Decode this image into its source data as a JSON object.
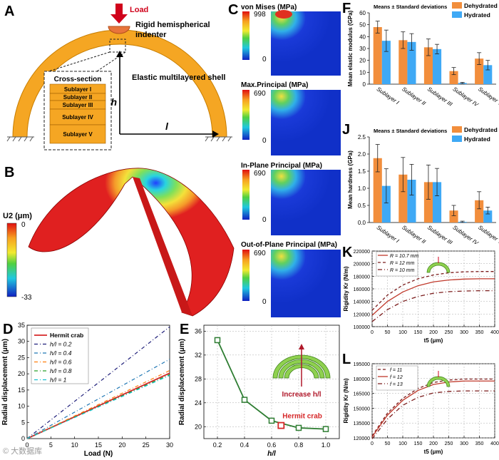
{
  "panels": {
    "A": {
      "letter": "A",
      "load_label": "Load",
      "indenter_label_1": "Rigid hemispherical",
      "indenter_label_2": "indenter",
      "shell_label": "Elastic multilayered shell",
      "cross_section_title": "Cross-section",
      "sublayers": [
        "Sublayer I",
        "Sublayer II",
        "Sublayer III",
        "Sublayer IV",
        "Sublayer V"
      ],
      "h_label": "h",
      "l_label": "l",
      "colors": {
        "shell": "#f5a623",
        "load": "#d0021b",
        "indenter": "#e8743b"
      }
    },
    "B": {
      "letter": "B",
      "legend_title": "U2 (μm)",
      "legend_max": "0",
      "legend_min": "-33"
    },
    "C": {
      "letter": "C",
      "maps": [
        {
          "title": "von Mises (MPa)",
          "max": "998",
          "min": "0"
        },
        {
          "title": "Max.Principal (MPa)",
          "max": "690",
          "min": "0"
        },
        {
          "title": "In-Plane Principal (MPa)",
          "max": "690",
          "min": "0"
        },
        {
          "title": "Out-of-Plane Principal (MPa)",
          "max": "690",
          "min": "0"
        }
      ]
    },
    "D": {
      "letter": "D"
    },
    "E": {
      "letter": "E",
      "annotation": "Increase h/l",
      "hermit_label": "Hermit crab"
    },
    "F": {
      "letter": "F"
    },
    "J": {
      "letter": "J"
    },
    "K": {
      "letter": "K"
    },
    "L": {
      "letter": "L"
    }
  },
  "watermark": "© 大数据库",
  "chart_data": [
    {
      "id": "D",
      "type": "line",
      "xlabel": "Load (N)",
      "ylabel": "Radial displacement (μm)",
      "xlim": [
        0,
        30
      ],
      "ylim": [
        0,
        35
      ],
      "xticks": [
        "0",
        "5",
        "10",
        "15",
        "20",
        "25",
        "30"
      ],
      "yticks": [
        "0",
        "5",
        "10",
        "15",
        "20",
        "25",
        "30",
        "35"
      ],
      "series": [
        {
          "name": "Hermit crab",
          "color": "#d62728",
          "dash": "",
          "x": [
            0,
            30
          ],
          "y": [
            0,
            20.2
          ]
        },
        {
          "name": "h/l = 0.2",
          "color": "#1f1f7a",
          "dash": "5,3,1,3",
          "x": [
            0,
            30
          ],
          "y": [
            0,
            34.5
          ]
        },
        {
          "name": "h/l = 0.4",
          "color": "#1f77b4",
          "dash": "5,3,1,3",
          "x": [
            0,
            30
          ],
          "y": [
            0,
            24.5
          ]
        },
        {
          "name": "h/l = 0.6",
          "color": "#ff7f0e",
          "dash": "5,3,1,3",
          "x": [
            0,
            30
          ],
          "y": [
            0,
            21
          ]
        },
        {
          "name": "h/l = 0.8",
          "color": "#2ca02c",
          "dash": "5,3,1,3",
          "x": [
            0,
            30
          ],
          "y": [
            0,
            19.8
          ]
        },
        {
          "name": "h/l = 1",
          "color": "#17becf",
          "dash": "5,3,1,3",
          "x": [
            0,
            30
          ],
          "y": [
            0,
            19.5
          ]
        }
      ]
    },
    {
      "id": "E",
      "type": "line",
      "xlabel": "h/l",
      "ylabel": "Radial displacement (μm)",
      "xlim": [
        0.1,
        1.1
      ],
      "ylim": [
        18,
        37
      ],
      "xticks": [
        "0.2",
        "0.4",
        "0.6",
        "0.8",
        "1.0"
      ],
      "yticks": [
        "20",
        "24",
        "28",
        "32",
        "36"
      ],
      "series": [
        {
          "name": "h/l sweep",
          "color": "#2e7d32",
          "x": [
            0.2,
            0.4,
            0.6,
            0.8,
            1.0
          ],
          "y": [
            34.5,
            24.5,
            21,
            19.8,
            19.6
          ]
        },
        {
          "name": "Hermit crab",
          "color": "#d62728",
          "x": [
            0.67
          ],
          "y": [
            20.2
          ]
        }
      ]
    },
    {
      "id": "F",
      "type": "bar",
      "title": "Means ± Standard deviations",
      "ylabel": "Mean elastic modulus (GPa)",
      "ylim": [
        0,
        60
      ],
      "yticks": [
        "0",
        "10",
        "20",
        "30",
        "40",
        "50",
        "60"
      ],
      "categories": [
        "Sublayer I",
        "Sublayer II",
        "Sublayer III",
        "Sublayer IV",
        "Sublayer V"
      ],
      "series": [
        {
          "name": "Dehydrated",
          "color": "#f28e3c",
          "values": [
            48,
            37,
            31,
            11,
            21.5
          ],
          "errors": [
            5,
            7,
            7,
            3,
            5
          ]
        },
        {
          "name": "Hydrated",
          "color": "#3fa9f5",
          "values": [
            36.5,
            35.5,
            29.5,
            1,
            16
          ],
          "errors": [
            9,
            7,
            4,
            0.5,
            4
          ]
        }
      ]
    },
    {
      "id": "J",
      "type": "bar",
      "title": "Means ± Standard deviations",
      "ylabel": "Mean hardness (GPa)",
      "ylim": [
        0,
        2.5
      ],
      "yticks": [
        "0.0",
        "0.5",
        "1.0",
        "1.5",
        "2.0",
        "2.5"
      ],
      "categories": [
        "Sublayer I",
        "Sublayer II",
        "Sublayer III",
        "Sublayer IV",
        "Sublayer V"
      ],
      "series": [
        {
          "name": "Dehydrated",
          "color": "#f28e3c",
          "values": [
            1.88,
            1.4,
            1.18,
            0.35,
            0.65
          ],
          "errors": [
            0.4,
            0.5,
            0.5,
            0.15,
            0.25
          ]
        },
        {
          "name": "Hydrated",
          "color": "#3fa9f5",
          "values": [
            1.07,
            1.25,
            1.18,
            0.02,
            0.35
          ],
          "errors": [
            0.5,
            0.45,
            0.4,
            0.02,
            0.1
          ]
        }
      ]
    },
    {
      "id": "K",
      "type": "line",
      "xlabel": "t5 (μm)",
      "ylabel": "Rigidity Kr (N/m)",
      "xlim": [
        0,
        400
      ],
      "ylim": [
        100000,
        220000
      ],
      "xticks": [
        "0",
        "50",
        "100",
        "150",
        "200",
        "250",
        "300",
        "350",
        "400"
      ],
      "yticks": [
        "100000",
        "120000",
        "140000",
        "160000",
        "180000",
        "200000",
        "220000"
      ],
      "series": [
        {
          "name": "R = 10.7 mm",
          "color": "#c0392b",
          "dash": "",
          "x": [
            0,
            50,
            100,
            150,
            200,
            250,
            300,
            350,
            400
          ],
          "y": [
            118000,
            140000,
            155000,
            165000,
            171000,
            174000,
            175500,
            176000,
            176000
          ]
        },
        {
          "name": "R = 12 mm",
          "color": "#7b1c1c",
          "dash": "4,3",
          "x": [
            0,
            50,
            100,
            150,
            200,
            250,
            300,
            350,
            400
          ],
          "y": [
            126000,
            150000,
            166000,
            176000,
            182000,
            185500,
            187000,
            187500,
            187500
          ]
        },
        {
          "name": "R = 10 mm",
          "color": "#7b1c1c",
          "dash": "6,3,1,3",
          "x": [
            0,
            50,
            100,
            150,
            200,
            250,
            300,
            350,
            400
          ],
          "y": [
            108000,
            127000,
            140000,
            148000,
            153000,
            155500,
            156500,
            157000,
            157000
          ]
        }
      ]
    },
    {
      "id": "L",
      "type": "line",
      "xlabel": "t5 (μm)",
      "ylabel": "Rigidity Kr (N/m)",
      "xlim": [
        0,
        400
      ],
      "ylim": [
        120000,
        195000
      ],
      "xticks": [
        "0",
        "50",
        "100",
        "150",
        "200",
        "250",
        "300",
        "350",
        "400"
      ],
      "yticks": [
        "120000",
        "135000",
        "150000",
        "165000",
        "180000",
        "195000"
      ],
      "series": [
        {
          "name": "f = 11",
          "color": "#7b1c1c",
          "dash": "4,3",
          "x": [
            0,
            50,
            100,
            150,
            200,
            250,
            300,
            350,
            400
          ],
          "y": [
            122000,
            145000,
            160000,
            170000,
            176000,
            178500,
            179500,
            179500,
            179500
          ]
        },
        {
          "name": "f = 12",
          "color": "#c0392b",
          "dash": "",
          "x": [
            0,
            50,
            100,
            150,
            200,
            250,
            300,
            350,
            400
          ],
          "y": [
            121000,
            143000,
            158000,
            168000,
            174000,
            176500,
            177500,
            177500,
            177500
          ]
        },
        {
          "name": "f = 13",
          "color": "#7b1c1c",
          "dash": "6,3,1,3",
          "x": [
            0,
            50,
            100,
            150,
            200,
            250,
            300,
            350,
            400
          ],
          "y": [
            119000,
            139000,
            153000,
            161000,
            165500,
            167000,
            167500,
            167500,
            167500
          ]
        }
      ]
    }
  ]
}
